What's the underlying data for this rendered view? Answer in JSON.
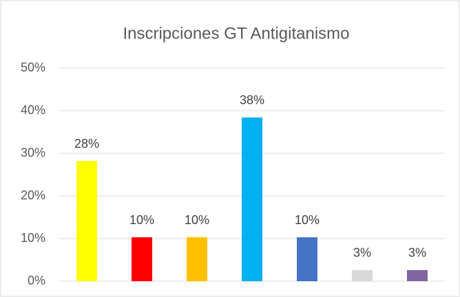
{
  "chart_data": {
    "type": "bar",
    "title": "Inscripciones GT Antigitanismo",
    "categories": [
      null,
      null,
      null,
      null,
      null,
      null,
      null
    ],
    "values": [
      28.2,
      10.3,
      10.3,
      38.4,
      10.3,
      2.6,
      2.6
    ],
    "value_labels": [
      "28%",
      "10%",
      "10%",
      "38%",
      "10%",
      "3%",
      "3%"
    ],
    "colors": [
      "#ffff00",
      "#ff0000",
      "#ffc000",
      "#00b0f0",
      "#4472c4",
      "#d9d9d9",
      "#8064a2"
    ],
    "ylim": [
      0,
      50
    ],
    "yticks": [
      {
        "value": 0,
        "label": "0%"
      },
      {
        "value": 10,
        "label": "10%"
      },
      {
        "value": 20,
        "label": "20%"
      },
      {
        "value": 30,
        "label": "30%"
      },
      {
        "value": 40,
        "label": "40%"
      },
      {
        "value": 50,
        "label": "50%"
      }
    ],
    "grid": true
  }
}
